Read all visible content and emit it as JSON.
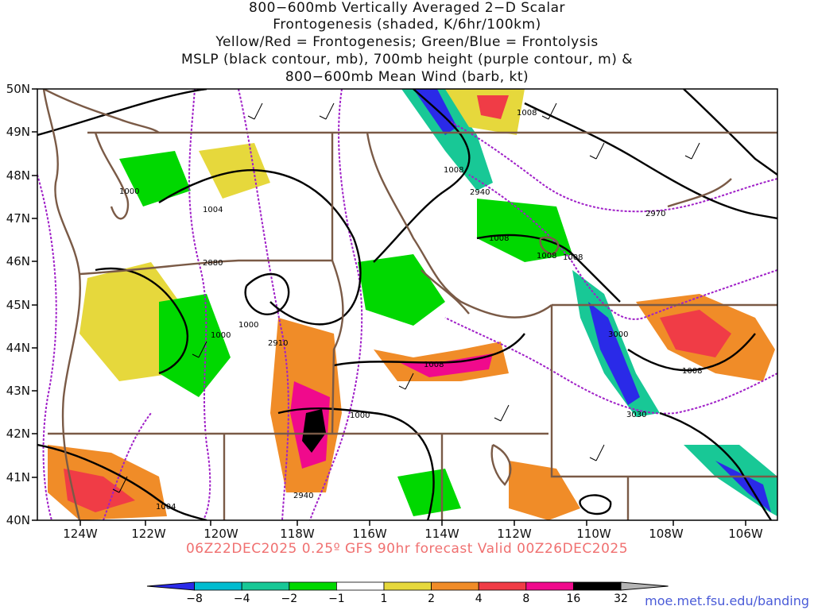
{
  "title_lines": [
    "800−600mb Vertically Averaged 2−D Scalar",
    "Frontogenesis (shaded, K/6hr/100km)",
    "Yellow/Red = Frontogenesis;  Green/Blue = Frontolysis",
    "MSLP (black contour, mb), 700mb height (purple contour, m) &",
    "800−600mb Mean Wind (barb, kt)"
  ],
  "lat_labels": [
    "50N",
    "49N",
    "48N",
    "47N",
    "46N",
    "45N",
    "44N",
    "43N",
    "42N",
    "41N",
    "40N"
  ],
  "lon_labels": [
    "124W",
    "122W",
    "120W",
    "118W",
    "116W",
    "114W",
    "112W",
    "110W",
    "108W",
    "106W"
  ],
  "contour_labels": {
    "mslp": [
      "1008",
      "1008",
      "1008",
      "1008",
      "1004",
      "1000",
      "1000",
      "1000",
      "1008",
      "1008",
      "1000",
      "1004",
      "1008"
    ],
    "height": [
      "2880",
      "2910",
      "2940",
      "2970",
      "3000",
      "3030",
      "2940"
    ]
  },
  "valid_text": "06Z22DEC2025 0.25º GFS 90hr forecast Valid 00Z26DEC2025",
  "colorbar": {
    "ticks": [
      "−8",
      "−4",
      "−2",
      "−1",
      "1",
      "2",
      "4",
      "8",
      "16",
      "32"
    ],
    "colors": [
      "#2a2ae8",
      "#00bcd0",
      "#18c896",
      "#00d800",
      "#ffffff",
      "#e6d83c",
      "#f08c28",
      "#f03c46",
      "#f00a8c",
      "#000000",
      "#b4b4b4"
    ]
  },
  "credit": "moe.met.fsu.edu/banding"
}
